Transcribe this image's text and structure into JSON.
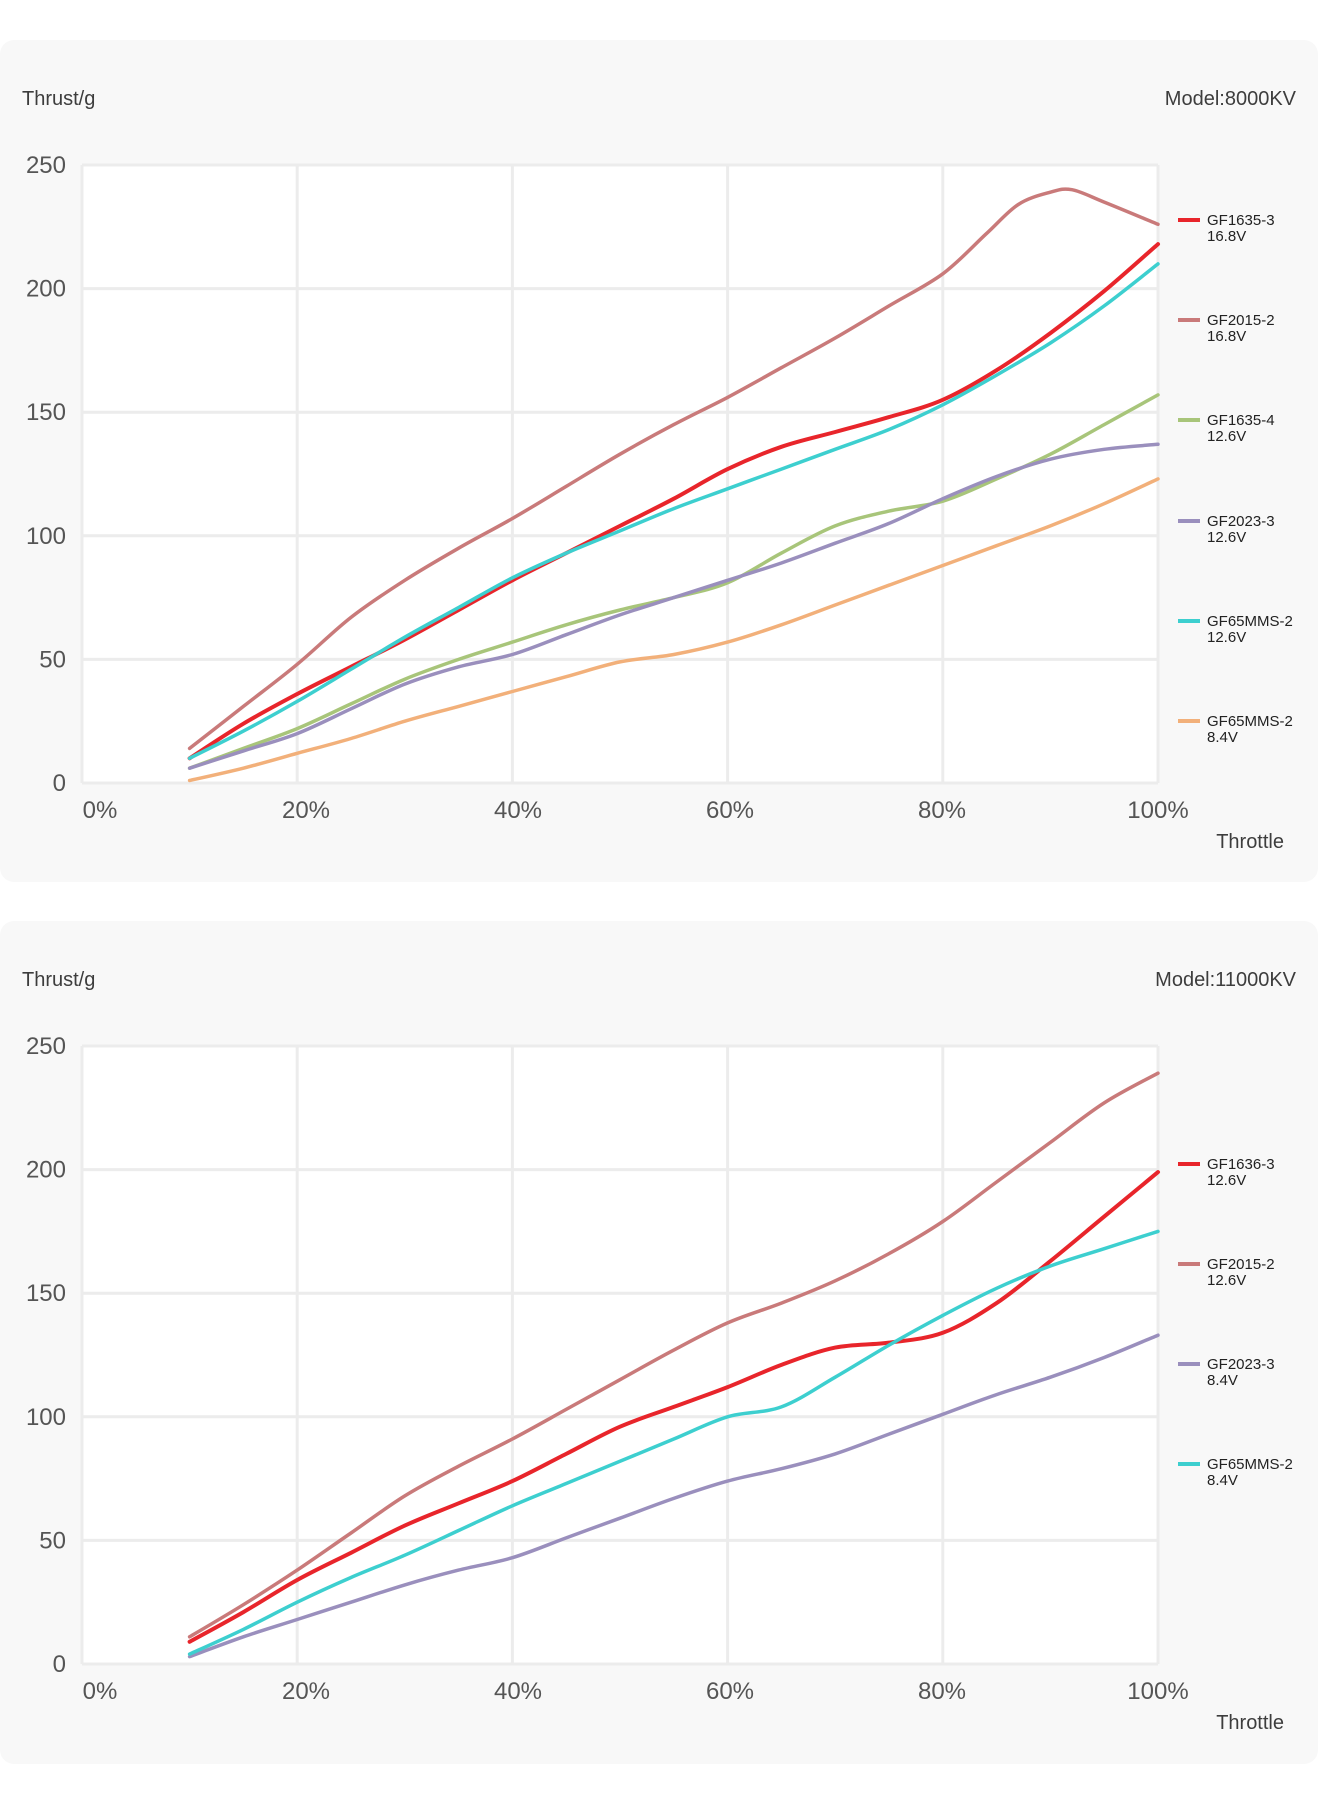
{
  "chart_data": [
    {
      "type": "line",
      "ylabel": "Thrust/g",
      "xlabel": "Throttle",
      "model": "Model:8000KV",
      "x_ticks": [
        "0%",
        "20%",
        "40%",
        "60%",
        "80%",
        "100%"
      ],
      "y_ticks": [
        "0",
        "50",
        "100",
        "150",
        "200",
        "250"
      ],
      "ylim": [
        0,
        250
      ],
      "xlim": [
        0,
        100
      ],
      "series": [
        {
          "name": "GF1635-3",
          "voltage": "16.8V",
          "color": "#e8252b",
          "x": [
            10,
            15,
            20,
            25,
            30,
            35,
            40,
            45,
            50,
            55,
            60,
            65,
            70,
            75,
            80,
            85,
            90,
            95,
            100
          ],
          "y": [
            10,
            24,
            36,
            47,
            58,
            70,
            82,
            93,
            104,
            115,
            127,
            136,
            142,
            148,
            155,
            167,
            182,
            199,
            218
          ]
        },
        {
          "name": "GF2015-2",
          "voltage": "16.8V",
          "color": "#c97a7a",
          "x": [
            10,
            15,
            20,
            25,
            30,
            35,
            40,
            45,
            50,
            55,
            60,
            65,
            70,
            75,
            80,
            84,
            87,
            90,
            92,
            95,
            100
          ],
          "y": [
            14,
            31,
            48,
            67,
            82,
            95,
            107,
            120,
            133,
            145,
            156,
            168,
            180,
            193,
            206,
            222,
            234,
            239,
            240,
            235,
            226
          ]
        },
        {
          "name": "GF1635-4",
          "voltage": "12.6V",
          "color": "#a8c57a",
          "x": [
            10,
            15,
            20,
            25,
            30,
            35,
            40,
            45,
            50,
            55,
            60,
            65,
            70,
            75,
            80,
            85,
            90,
            95,
            100
          ],
          "y": [
            6,
            14,
            22,
            32,
            42,
            50,
            57,
            64,
            70,
            75,
            81,
            93,
            104,
            110,
            114,
            123,
            133,
            145,
            157
          ]
        },
        {
          "name": "GF2023-3",
          "voltage": "12.6V",
          "color": "#9a8fbd",
          "x": [
            10,
            15,
            20,
            25,
            30,
            35,
            40,
            45,
            50,
            55,
            60,
            65,
            70,
            75,
            80,
            85,
            90,
            95,
            100
          ],
          "y": [
            6,
            13,
            20,
            30,
            40,
            47,
            52,
            60,
            68,
            75,
            82,
            89,
            97,
            105,
            115,
            124,
            131,
            135,
            137
          ]
        },
        {
          "name": "GF65MMS-2",
          "voltage": "12.6V",
          "color": "#3dcfcf",
          "x": [
            10,
            15,
            20,
            25,
            30,
            35,
            40,
            45,
            50,
            55,
            60,
            65,
            70,
            75,
            80,
            85,
            90,
            95,
            100
          ],
          "y": [
            10,
            21,
            33,
            46,
            59,
            71,
            83,
            93,
            102,
            111,
            119,
            127,
            135,
            143,
            153,
            165,
            178,
            193,
            210
          ]
        },
        {
          "name": "GF65MMS-2",
          "voltage": "8.4V",
          "color": "#f2b07a",
          "x": [
            10,
            15,
            20,
            25,
            30,
            35,
            40,
            45,
            50,
            55,
            60,
            65,
            70,
            75,
            80,
            85,
            90,
            95,
            100
          ],
          "y": [
            1,
            6,
            12,
            18,
            25,
            31,
            37,
            43,
            49,
            52,
            57,
            64,
            72,
            80,
            88,
            96,
            104,
            113,
            123
          ]
        }
      ]
    },
    {
      "type": "line",
      "ylabel": "Thrust/g",
      "xlabel": "Throttle",
      "model": "Model:11000KV",
      "x_ticks": [
        "0%",
        "20%",
        "40%",
        "60%",
        "80%",
        "100%"
      ],
      "y_ticks": [
        "0",
        "50",
        "100",
        "150",
        "200",
        "250"
      ],
      "ylim": [
        0,
        250
      ],
      "xlim": [
        0,
        100
      ],
      "series": [
        {
          "name": "GF1636-3",
          "voltage": "12.6V",
          "color": "#e8252b",
          "x": [
            10,
            15,
            20,
            25,
            30,
            35,
            40,
            45,
            50,
            55,
            60,
            65,
            70,
            75,
            80,
            85,
            90,
            95,
            100
          ],
          "y": [
            9,
            21,
            34,
            45,
            56,
            65,
            74,
            85,
            96,
            104,
            112,
            121,
            128,
            130,
            134,
            146,
            163,
            181,
            199
          ]
        },
        {
          "name": "GF2015-2",
          "voltage": "12.6V",
          "color": "#c97a7a",
          "x": [
            10,
            15,
            20,
            25,
            30,
            35,
            40,
            45,
            50,
            55,
            60,
            65,
            70,
            75,
            80,
            85,
            90,
            95,
            100
          ],
          "y": [
            11,
            24,
            38,
            53,
            68,
            80,
            91,
            103,
            115,
            127,
            138,
            146,
            155,
            166,
            179,
            195,
            211,
            227,
            239
          ]
        },
        {
          "name": "GF2023-3",
          "voltage": "8.4V",
          "color": "#9a8fbd",
          "x": [
            10,
            15,
            20,
            25,
            30,
            35,
            40,
            45,
            50,
            55,
            60,
            65,
            70,
            75,
            80,
            85,
            90,
            95,
            100
          ],
          "y": [
            3,
            11,
            18,
            25,
            32,
            38,
            43,
            51,
            59,
            67,
            74,
            79,
            85,
            93,
            101,
            109,
            116,
            124,
            133
          ]
        },
        {
          "name": "GF65MMS-2",
          "voltage": "8.4V",
          "color": "#3dcfcf",
          "x": [
            10,
            15,
            20,
            25,
            30,
            35,
            40,
            45,
            50,
            55,
            60,
            65,
            70,
            75,
            80,
            85,
            90,
            95,
            100
          ],
          "y": [
            4,
            14,
            25,
            35,
            44,
            54,
            64,
            73,
            82,
            91,
            100,
            104,
            116,
            129,
            141,
            152,
            161,
            168,
            175
          ]
        }
      ]
    }
  ]
}
